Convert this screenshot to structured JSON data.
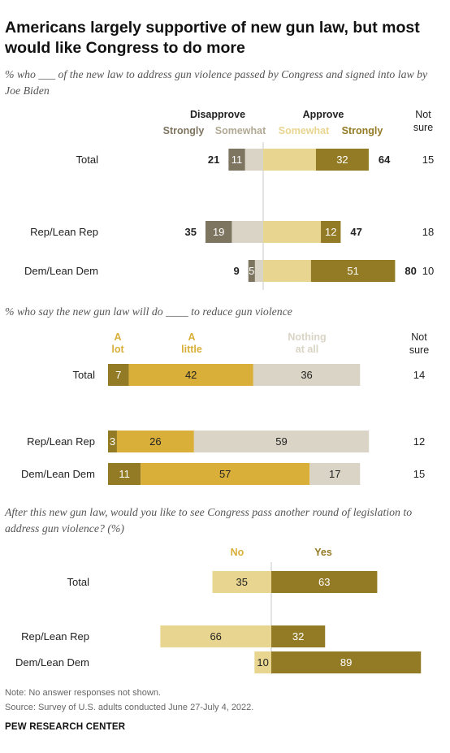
{
  "title": "Americans largely supportive of new gun law, but most would like Congress to do more",
  "note": "Note: No answer responses not shown.",
  "source": "Source: Survey of U.S. adults conducted June 27-July 4, 2022.",
  "brand": "PEW RESEARCH CENTER",
  "colors": {
    "strong": "#937a24",
    "mid": "#d9af3a",
    "light": "#e8d58f",
    "grayDark": "#7e7560",
    "grayMid": "#b1a994",
    "grayLight": "#d9d4c5",
    "axis": "#c8c8c8"
  },
  "chart_data": [
    {
      "type": "bar",
      "subtitle": "% who ___ of the new law to address gun violence passed by Congress and signed into law by Joe Biden",
      "header": {
        "disapprove": "Disapprove",
        "approve": "Approve",
        "strongly_left": "Strongly",
        "somewhat_left": "Somewhat",
        "somewhat_right": "Somewhat",
        "strongly_right": "Strongly",
        "not_sure": "Not\nsure"
      },
      "categories": [
        "Total",
        "Rep/Lean Rep",
        "Dem/Lean Dem"
      ],
      "series": [
        {
          "name": "Disapprove Strongly",
          "values": [
            10,
            16,
            4
          ]
        },
        {
          "name": "Disapprove Somewhat",
          "values": [
            11,
            19,
            5
          ]
        },
        {
          "name": "Approve Somewhat",
          "values": [
            32,
            35,
            29
          ]
        },
        {
          "name": "Approve Strongly",
          "values": [
            32,
            12,
            51
          ]
        }
      ],
      "bar_labels": {
        "disapprove_strongly": [
          "",
          "",
          ""
        ],
        "disapprove_somewhat": [
          "11",
          "19",
          "5"
        ],
        "approve_somewhat": [
          "",
          "",
          ""
        ],
        "approve_strongly": [
          "32",
          "12",
          "51"
        ]
      },
      "totals_disapprove": [
        "21",
        "35",
        "9"
      ],
      "totals_approve": [
        "64",
        "47",
        "80"
      ],
      "not_sure": [
        "15",
        "18",
        "10"
      ]
    },
    {
      "type": "bar",
      "subtitle": "% who say the new gun law will do ____ to reduce gun violence",
      "header": {
        "a_lot": "A\nlot",
        "a_little": "A\nlittle",
        "nothing": "Nothing\nat all",
        "not_sure": "Not\nsure"
      },
      "categories": [
        "Total",
        "Rep/Lean Rep",
        "Dem/Lean Dem"
      ],
      "series": [
        {
          "name": "A lot",
          "values": [
            7,
            3,
            11
          ]
        },
        {
          "name": "A little",
          "values": [
            42,
            26,
            57
          ]
        },
        {
          "name": "Nothing at all",
          "values": [
            36,
            59,
            17
          ]
        }
      ],
      "not_sure": [
        "14",
        "12",
        "15"
      ]
    },
    {
      "type": "bar",
      "subtitle": "After this new gun law, would you like to see Congress pass another round of legislation to address gun violence? (%)",
      "header": {
        "no": "No",
        "yes": "Yes"
      },
      "categories": [
        "Total",
        "Rep/Lean Rep",
        "Dem/Lean Dem"
      ],
      "series": [
        {
          "name": "No",
          "values": [
            35,
            66,
            10
          ]
        },
        {
          "name": "Yes",
          "values": [
            63,
            32,
            89
          ]
        }
      ]
    }
  ]
}
